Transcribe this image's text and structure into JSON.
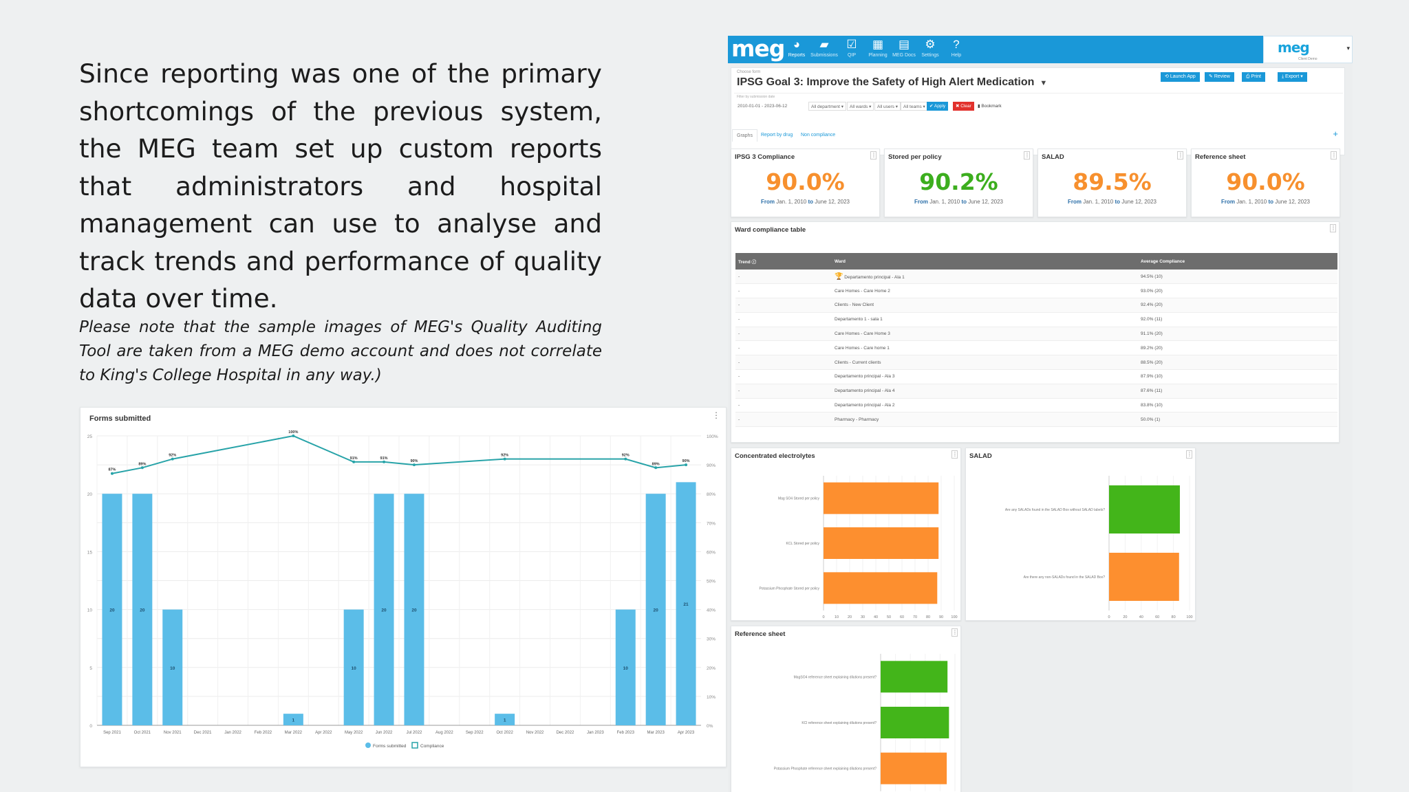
{
  "intro_text": "Since reporting was one of the primary shortcomings of the previous system, the MEG team set up custom reports that administrators and hospital management can use to analyse and track trends and performance of quality data over time.",
  "note_text": "Please note that the sample images of MEG's Quality Auditing Tool are taken from a MEG demo account and does not correlate to King's College Hospital in any way.)",
  "forms_panel": {
    "title": "Forms submitted",
    "menu_icon": "kebab-icon",
    "chart_data": {
      "type": "bar",
      "categories": [
        "Sep 2021",
        "Oct 2021",
        "Nov 2021",
        "Dec 2021",
        "Jan 2022",
        "Feb 2022",
        "Mar 2022",
        "Apr 2022",
        "May 2022",
        "Jun 2022",
        "Jul 2022",
        "Aug 2022",
        "Sep 2022",
        "Oct 2022",
        "Nov 2022",
        "Dec 2022",
        "Jan 2023",
        "Feb 2023",
        "Mar 2023",
        "Apr 2023"
      ],
      "series": [
        {
          "name": "Forms submitted",
          "type": "bar",
          "values": [
            20,
            20,
            10,
            null,
            null,
            null,
            1,
            null,
            10,
            20,
            20,
            null,
            null,
            1,
            null,
            null,
            null,
            10,
            20,
            21
          ],
          "labels": [
            "20",
            "20",
            "10",
            "",
            "",
            "",
            "1",
            "",
            "10",
            "20",
            "20",
            "",
            "",
            "1",
            "",
            "",
            "",
            "10",
            "20",
            "21"
          ]
        },
        {
          "name": "Compliance",
          "type": "line",
          "values": [
            87,
            89,
            92,
            null,
            null,
            null,
            100,
            null,
            91,
            91,
            90,
            null,
            null,
            92,
            null,
            null,
            null,
            92,
            89,
            90
          ],
          "labels": [
            "87%",
            "89%",
            "92%",
            "",
            "",
            "",
            "100%",
            "",
            "91%",
            "91%",
            "90%",
            "",
            "",
            "92%",
            "",
            "",
            "",
            "92%",
            "89%",
            "90%"
          ]
        }
      ],
      "y_left": {
        "ticks": [
          "25",
          "20",
          "15",
          "10",
          "5",
          "0"
        ],
        "range": [
          0,
          25
        ]
      },
      "y_right": {
        "ticks": [
          "100%",
          "90%",
          "80%",
          "70%",
          "60%",
          "50%",
          "40%",
          "30%",
          "20%",
          "10%",
          "0%"
        ],
        "range": [
          0,
          100
        ]
      },
      "colors": {
        "bar": "#5bbde8",
        "line": "#27a3a8"
      },
      "grid": true,
      "legend_position": "bottom"
    }
  },
  "app": {
    "logo": "meg",
    "nav": [
      {
        "label": "Reports",
        "icon": "pie-chart-icon",
        "glyph": "◕"
      },
      {
        "label": "Submissions",
        "icon": "folder-icon",
        "glyph": "▰"
      },
      {
        "label": "QIP",
        "icon": "checkbox-icon",
        "glyph": "☑"
      },
      {
        "label": "Planning",
        "icon": "calendar-icon",
        "glyph": "▦"
      },
      {
        "label": "MEG Docs",
        "icon": "document-icon",
        "glyph": "▤"
      },
      {
        "label": "Settings",
        "icon": "gear-icon",
        "glyph": "⚙"
      },
      {
        "label": "Help",
        "icon": "help-icon",
        "glyph": "?"
      }
    ],
    "brand_logo": "meg",
    "brand_sub": "Client Demo",
    "choose_form": "Choose form",
    "page_title": "IPSG Goal 3: Improve the Safety of High Alert Medication",
    "actions": [
      "Launch App",
      "Review",
      "Print",
      "Export"
    ],
    "filter_label": "Filter by submission date",
    "filters": [
      "2010-01-01 - 2023-06-12",
      "All department",
      "All wards",
      "All users",
      "All teams"
    ],
    "apply": "Apply",
    "clear": "Clear",
    "bookmark": "Bookmark",
    "tabs": [
      "Graphs",
      "Report by drug",
      "Non compliance"
    ],
    "kpis": [
      {
        "title": "IPSG 3 Compliance",
        "value": "90.0%",
        "color": "#f7902e",
        "from": "From",
        "from_date": "Jan. 1, 2010",
        "to": "to",
        "to_date": "June 12, 2023"
      },
      {
        "title": "Stored per policy",
        "value": "90.2%",
        "color": "#3cae1e",
        "from": "From",
        "from_date": "Jan. 1, 2010",
        "to": "to",
        "to_date": "June 12, 2023"
      },
      {
        "title": "SALAD",
        "value": "89.5%",
        "color": "#f7902e",
        "from": "From",
        "from_date": "Jan. 1, 2010",
        "to": "to",
        "to_date": "June 12, 2023"
      },
      {
        "title": "Reference sheet",
        "value": "90.0%",
        "color": "#f7902e",
        "from": "From",
        "from_date": "Jan. 1, 2010",
        "to": "to",
        "to_date": "June 12, 2023"
      }
    ],
    "ward_table": {
      "title": "Ward compliance table",
      "headers": [
        "Trend",
        "Ward",
        "Average Compliance"
      ],
      "rows": [
        [
          "-",
          "Departamento principal - Ala 1",
          "94.5% (10)"
        ],
        [
          "-",
          "Care Homes - Care Home 2",
          "93.0% (20)"
        ],
        [
          "-",
          "Clients - New Client",
          "92.4% (20)"
        ],
        [
          "-",
          "Departamento 1 - sala 1",
          "92.0% (11)"
        ],
        [
          "-",
          "Care Homes - Care Home 3",
          "91.1% (20)"
        ],
        [
          "-",
          "Care Homes - Care home 1",
          "89.2% (20)"
        ],
        [
          "-",
          "Clients - Current clients",
          "88.5% (20)"
        ],
        [
          "-",
          "Departamento principal - Ala 3",
          "87.9% (10)"
        ],
        [
          "-",
          "Departamento principal - Ala 4",
          "87.6% (11)"
        ],
        [
          "-",
          "Departamento principal - Ala 2",
          "83.8% (10)"
        ],
        [
          "-",
          "Pharmacy - Pharmacy",
          "50.0% (1)"
        ]
      ]
    },
    "hbar_charts": [
      {
        "title": "Concentrated electrolytes",
        "chart_data": {
          "type": "bar",
          "orientation": "horizontal",
          "categories": [
            "Mag SO4 Stored per policy",
            "KCL Stored per policy",
            "Potassium Phosphate Stored per policy"
          ],
          "values": [
            88,
            88,
            87
          ],
          "colors": [
            "#fd8f2f",
            "#fd8f2f",
            "#fd8f2f"
          ],
          "x_ticks": [
            "0",
            "10",
            "20",
            "30",
            "40",
            "50",
            "60",
            "70",
            "80",
            "90",
            "100"
          ],
          "xlim": [
            0,
            100
          ]
        }
      },
      {
        "title": "SALAD",
        "chart_data": {
          "type": "bar",
          "orientation": "horizontal",
          "categories": [
            "Are any SALADs found in the SALAD Box without SALAD labels?",
            "Are there any non-SALADs found in the SALAD Box?"
          ],
          "values": [
            88,
            87
          ],
          "colors": [
            "#43b51a",
            "#fd8f2f"
          ],
          "x_ticks": [
            "0",
            "20",
            "40",
            "60",
            "80",
            "100"
          ],
          "xlim": [
            0,
            100
          ]
        }
      },
      {
        "title": "Reference sheet",
        "chart_data": {
          "type": "bar",
          "orientation": "horizontal",
          "categories": [
            "MagSO4 reference sheet explaining dilutions present?",
            "KCl reference sheet explaining dilutions present?",
            "Potassium Phosphate reference sheet explaining dilutions present?"
          ],
          "values": [
            90,
            92,
            89
          ],
          "colors": [
            "#43b51a",
            "#43b51a",
            "#fd8f2f"
          ],
          "x_ticks": [
            "0",
            "20",
            "40",
            "60",
            "80",
            "100"
          ],
          "xlim": [
            0,
            100
          ]
        }
      }
    ]
  }
}
